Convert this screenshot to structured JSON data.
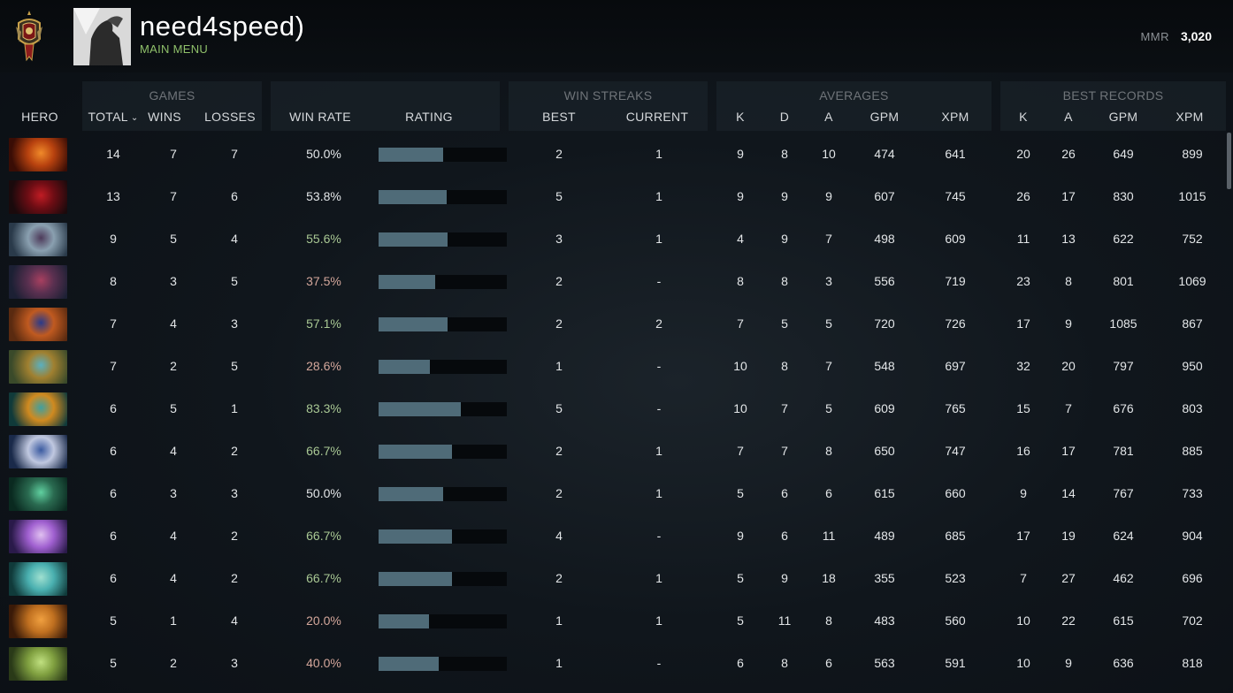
{
  "header": {
    "player_name": "need4speed)",
    "main_menu_label": "MAIN MENU",
    "mmr_label": "MMR",
    "mmr_value": "3,020"
  },
  "groups": {
    "games": "GAMES",
    "win_streaks": "WIN STREAKS",
    "averages": "AVERAGES",
    "best_records": "BEST RECORDS"
  },
  "columns": {
    "hero": "HERO",
    "total": "TOTAL",
    "wins": "WINS",
    "losses": "LOSSES",
    "win_rate": "WIN RATE",
    "rating": "RATING",
    "best": "BEST",
    "current": "CURRENT",
    "avg_k": "K",
    "avg_d": "D",
    "avg_a": "A",
    "avg_gpm": "GPM",
    "avg_xpm": "XPM",
    "best_k": "K",
    "best_a": "A",
    "best_gpm": "GPM",
    "best_xpm": "XPM"
  },
  "colors": {
    "win_rate_good": "#a9c894",
    "win_rate_bad": "#d4a79b",
    "win_rate_neutral": "#e3e6e8",
    "rating_bar": "#4f6b78",
    "main_menu": "#8fc06a"
  },
  "rows": [
    {
      "total": "14",
      "wins": "7",
      "losses": "7",
      "win_rate": "50.0%",
      "rating": 0.5,
      "best_streak": "2",
      "current_streak": "1",
      "avg_k": "9",
      "avg_d": "8",
      "avg_a": "10",
      "avg_gpm": "474",
      "avg_xpm": "641",
      "best_k": "20",
      "best_a": "26",
      "best_gpm": "649",
      "best_xpm": "899"
    },
    {
      "total": "13",
      "wins": "7",
      "losses": "6",
      "win_rate": "53.8%",
      "rating": 0.53,
      "best_streak": "5",
      "current_streak": "1",
      "avg_k": "9",
      "avg_d": "9",
      "avg_a": "9",
      "avg_gpm": "607",
      "avg_xpm": "745",
      "best_k": "26",
      "best_a": "17",
      "best_gpm": "830",
      "best_xpm": "1015"
    },
    {
      "total": "9",
      "wins": "5",
      "losses": "4",
      "win_rate": "55.6%",
      "rating": 0.54,
      "best_streak": "3",
      "current_streak": "1",
      "avg_k": "4",
      "avg_d": "9",
      "avg_a": "7",
      "avg_gpm": "498",
      "avg_xpm": "609",
      "best_k": "11",
      "best_a": "13",
      "best_gpm": "622",
      "best_xpm": "752"
    },
    {
      "total": "8",
      "wins": "3",
      "losses": "5",
      "win_rate": "37.5%",
      "rating": 0.44,
      "best_streak": "2",
      "current_streak": "-",
      "avg_k": "8",
      "avg_d": "8",
      "avg_a": "3",
      "avg_gpm": "556",
      "avg_xpm": "719",
      "best_k": "23",
      "best_a": "8",
      "best_gpm": "801",
      "best_xpm": "1069"
    },
    {
      "total": "7",
      "wins": "4",
      "losses": "3",
      "win_rate": "57.1%",
      "rating": 0.54,
      "best_streak": "2",
      "current_streak": "2",
      "avg_k": "7",
      "avg_d": "5",
      "avg_a": "5",
      "avg_gpm": "720",
      "avg_xpm": "726",
      "best_k": "17",
      "best_a": "9",
      "best_gpm": "1085",
      "best_xpm": "867"
    },
    {
      "total": "7",
      "wins": "2",
      "losses": "5",
      "win_rate": "28.6%",
      "rating": 0.4,
      "best_streak": "1",
      "current_streak": "-",
      "avg_k": "10",
      "avg_d": "8",
      "avg_a": "7",
      "avg_gpm": "548",
      "avg_xpm": "697",
      "best_k": "32",
      "best_a": "20",
      "best_gpm": "797",
      "best_xpm": "950"
    },
    {
      "total": "6",
      "wins": "5",
      "losses": "1",
      "win_rate": "83.3%",
      "rating": 0.64,
      "best_streak": "5",
      "current_streak": "-",
      "avg_k": "10",
      "avg_d": "7",
      "avg_a": "5",
      "avg_gpm": "609",
      "avg_xpm": "765",
      "best_k": "15",
      "best_a": "7",
      "best_gpm": "676",
      "best_xpm": "803"
    },
    {
      "total": "6",
      "wins": "4",
      "losses": "2",
      "win_rate": "66.7%",
      "rating": 0.57,
      "best_streak": "2",
      "current_streak": "1",
      "avg_k": "7",
      "avg_d": "7",
      "avg_a": "8",
      "avg_gpm": "650",
      "avg_xpm": "747",
      "best_k": "16",
      "best_a": "17",
      "best_gpm": "781",
      "best_xpm": "885"
    },
    {
      "total": "6",
      "wins": "3",
      "losses": "3",
      "win_rate": "50.0%",
      "rating": 0.5,
      "best_streak": "2",
      "current_streak": "1",
      "avg_k": "5",
      "avg_d": "6",
      "avg_a": "6",
      "avg_gpm": "615",
      "avg_xpm": "660",
      "best_k": "9",
      "best_a": "14",
      "best_gpm": "767",
      "best_xpm": "733"
    },
    {
      "total": "6",
      "wins": "4",
      "losses": "2",
      "win_rate": "66.7%",
      "rating": 0.57,
      "best_streak": "4",
      "current_streak": "-",
      "avg_k": "9",
      "avg_d": "6",
      "avg_a": "11",
      "avg_gpm": "489",
      "avg_xpm": "685",
      "best_k": "17",
      "best_a": "19",
      "best_gpm": "624",
      "best_xpm": "904"
    },
    {
      "total": "6",
      "wins": "4",
      "losses": "2",
      "win_rate": "66.7%",
      "rating": 0.57,
      "best_streak": "2",
      "current_streak": "1",
      "avg_k": "5",
      "avg_d": "9",
      "avg_a": "18",
      "avg_gpm": "355",
      "avg_xpm": "523",
      "best_k": "7",
      "best_a": "27",
      "best_gpm": "462",
      "best_xpm": "696"
    },
    {
      "total": "5",
      "wins": "1",
      "losses": "4",
      "win_rate": "20.0%",
      "rating": 0.39,
      "best_streak": "1",
      "current_streak": "1",
      "avg_k": "5",
      "avg_d": "11",
      "avg_a": "8",
      "avg_gpm": "483",
      "avg_xpm": "560",
      "best_k": "10",
      "best_a": "22",
      "best_gpm": "615",
      "best_xpm": "702"
    },
    {
      "total": "5",
      "wins": "2",
      "losses": "3",
      "win_rate": "40.0%",
      "rating": 0.47,
      "best_streak": "1",
      "current_streak": "-",
      "avg_k": "6",
      "avg_d": "8",
      "avg_a": "6",
      "avg_gpm": "563",
      "avg_xpm": "591",
      "best_k": "10",
      "best_a": "9",
      "best_gpm": "636",
      "best_xpm": "818"
    }
  ]
}
